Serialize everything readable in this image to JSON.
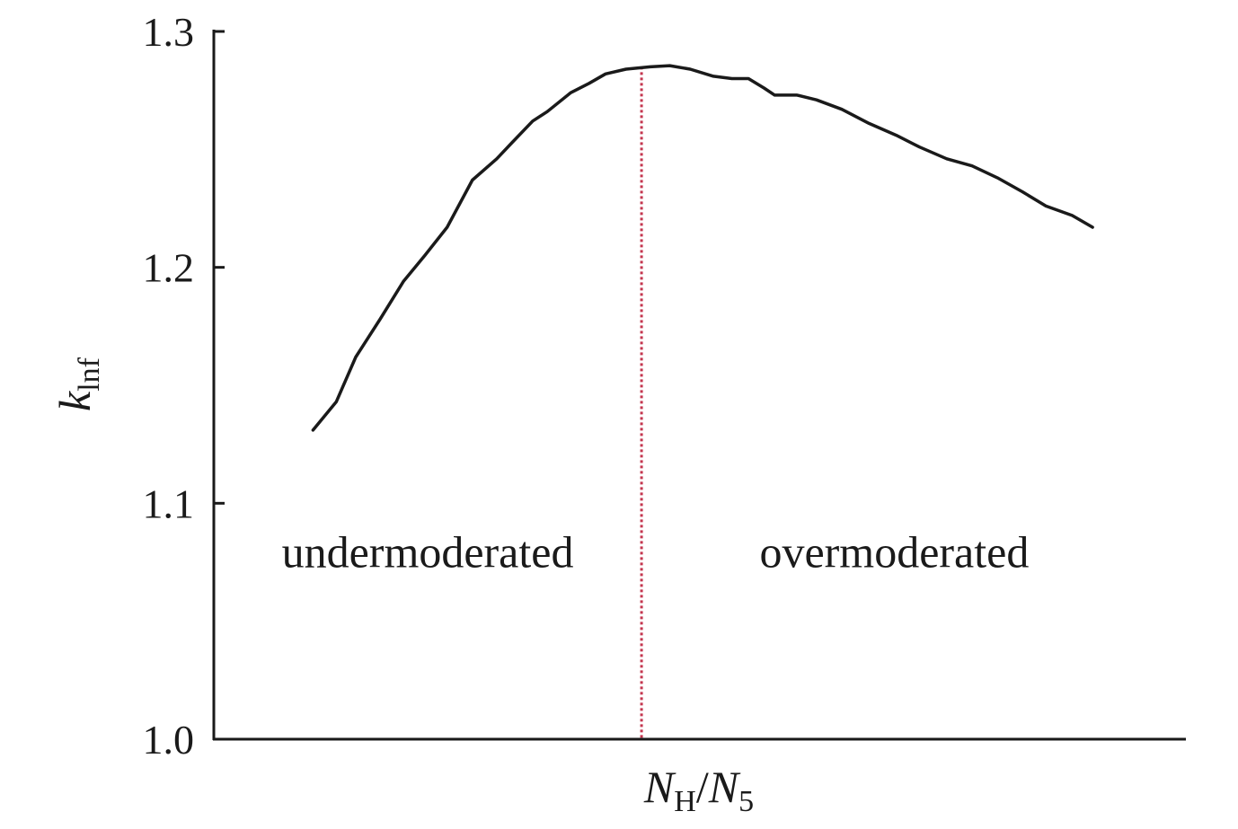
{
  "chart_data": {
    "type": "line",
    "title": "",
    "xlabel": {
      "main": "N",
      "sub1": "H",
      "sep": "/",
      "main2": "N",
      "sub2": "5"
    },
    "ylabel": {
      "main": "k",
      "sub": "lnf"
    },
    "ylim": [
      1.0,
      1.3
    ],
    "yticks": [
      "1.0",
      "1.1",
      "1.2",
      "1.3"
    ],
    "xlim": [
      0,
      1
    ],
    "x_ticks_shown": false,
    "grid": false,
    "legend": "none",
    "series": [
      {
        "color": "#1a1a1a",
        "points": [
          [
            0.102,
            1.131
          ],
          [
            0.126,
            1.143
          ],
          [
            0.146,
            1.162
          ],
          [
            0.171,
            1.178
          ],
          [
            0.195,
            1.194
          ],
          [
            0.217,
            1.205
          ],
          [
            0.24,
            1.217
          ],
          [
            0.266,
            1.237
          ],
          [
            0.291,
            1.246
          ],
          [
            0.307,
            1.253
          ],
          [
            0.328,
            1.262
          ],
          [
            0.343,
            1.266
          ],
          [
            0.367,
            1.274
          ],
          [
            0.386,
            1.278
          ],
          [
            0.403,
            1.282
          ],
          [
            0.424,
            1.284
          ],
          [
            0.449,
            1.285
          ],
          [
            0.469,
            1.2855
          ],
          [
            0.49,
            1.284
          ],
          [
            0.514,
            1.281
          ],
          [
            0.533,
            1.28
          ],
          [
            0.55,
            1.28
          ],
          [
            0.566,
            1.276
          ],
          [
            0.577,
            1.273
          ],
          [
            0.6,
            1.273
          ],
          [
            0.62,
            1.271
          ],
          [
            0.646,
            1.267
          ],
          [
            0.674,
            1.261
          ],
          [
            0.702,
            1.256
          ],
          [
            0.726,
            1.251
          ],
          [
            0.754,
            1.246
          ],
          [
            0.78,
            1.243
          ],
          [
            0.806,
            1.238
          ],
          [
            0.832,
            1.232
          ],
          [
            0.856,
            1.226
          ],
          [
            0.883,
            1.222
          ],
          [
            0.904,
            1.217
          ]
        ]
      }
    ],
    "reference_line": {
      "x": 0.44,
      "style": "dotted",
      "color": "#c4364f"
    },
    "annotations": [
      {
        "text": "undermoderated",
        "x": 0.22,
        "y": 1.079
      },
      {
        "text": "overmoderated",
        "x": 0.7,
        "y": 1.079
      }
    ]
  }
}
